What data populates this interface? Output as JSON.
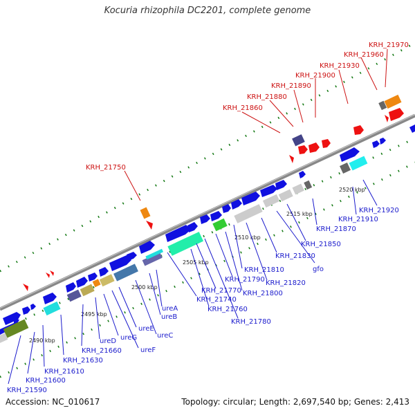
{
  "title": "Kocuria rhizophila DC2201, complete genome",
  "footer": {
    "accession": "Accession: NC_010617",
    "summary": "Topology: circular; Length: 2,697,540 bp; Genes: 2,413"
  },
  "colors": {
    "forward_gene": "#1010e0",
    "reverse_gene": "#e01010",
    "forward_label": "#1a1acc",
    "reverse_label": "#cc1111",
    "backbone": "#888888",
    "dots": "#117711"
  },
  "scale_ticks": [
    "2490 kbp",
    "2495 kbp",
    "2500 kbp",
    "2505 kbp",
    "2510 kbp",
    "2515 kbp",
    "2520 kbp"
  ],
  "reverse_labels": [
    "KRH_21750",
    "KRH_21860",
    "KRH_21880",
    "KRH_21890",
    "KRH_21900",
    "KRH_21930",
    "KRH_21960",
    "KRH_21970"
  ],
  "forward_labels": [
    "KRH_21590",
    "KRH_21600",
    "KRH_21610",
    "KRH_21630",
    "ureD",
    "KRH_21660",
    "ureG",
    "ureF",
    "ureE",
    "ureC",
    "ureB",
    "ureA",
    "KRH_21740",
    "KRH_21760",
    "KRH_21770",
    "KRH_21780",
    "KRH_21790",
    "KRH_21800",
    "KRH_21810",
    "KRH_21820",
    "KRH_21830",
    "gfo",
    "KRH_21850",
    "KRH_21870",
    "KRH_21910",
    "KRH_21920"
  ]
}
